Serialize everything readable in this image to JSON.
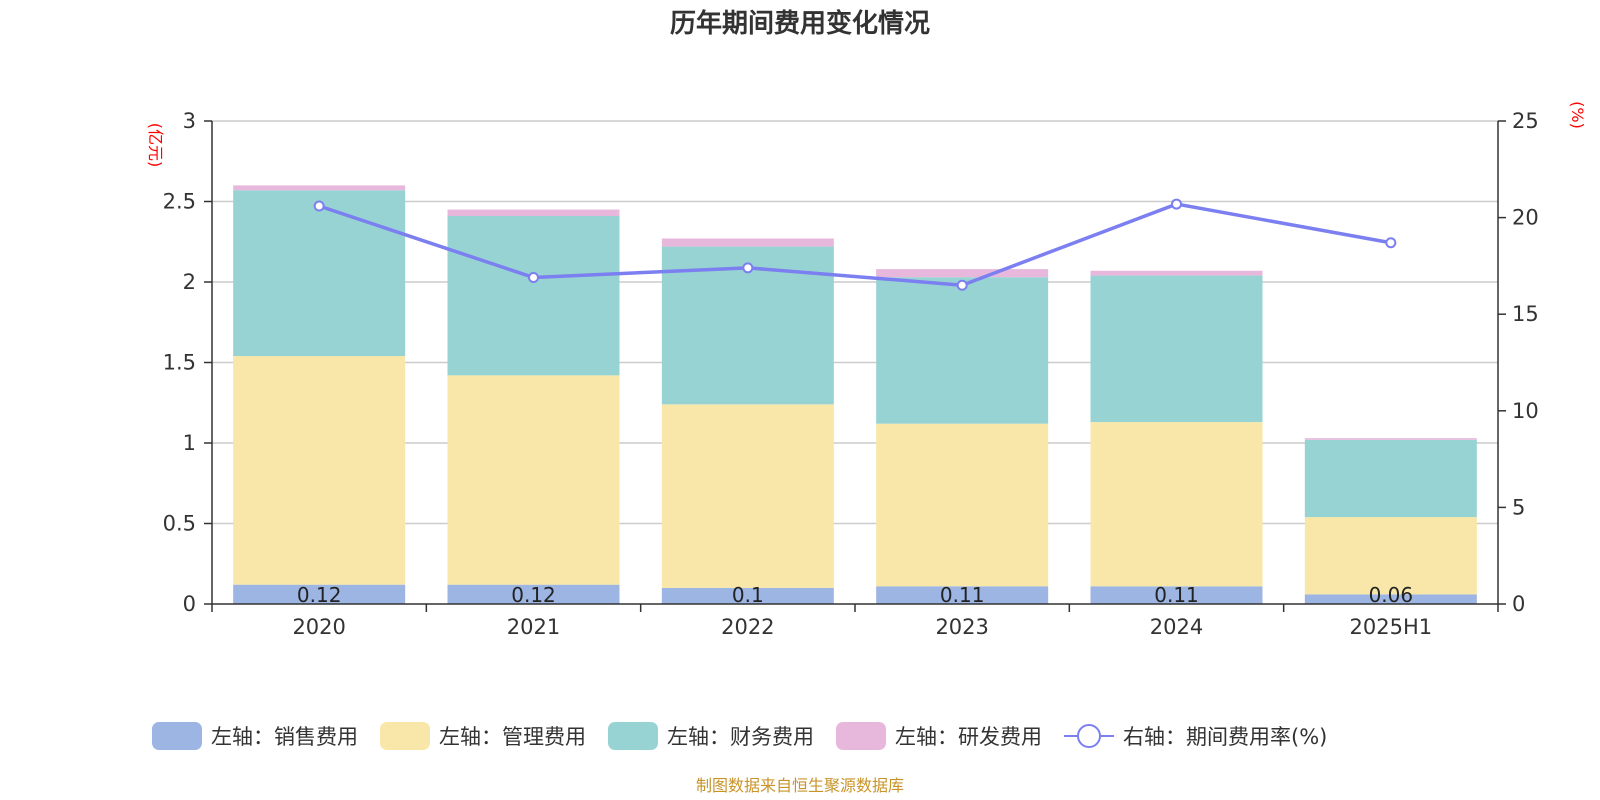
{
  "chart_data": {
    "type": "bar",
    "title": "历年期间费用变化情况",
    "categories": [
      "2020",
      "2021",
      "2022",
      "2023",
      "2024",
      "2025H1"
    ],
    "left_axis": {
      "unit": "(亿元)",
      "ylim": [
        0,
        3
      ],
      "ticks": [
        "0",
        "0.5",
        "1",
        "1.5",
        "2",
        "2.5",
        "3"
      ]
    },
    "right_axis": {
      "unit": "(%)",
      "ylim": [
        0,
        25
      ],
      "ticks": [
        "0",
        "5",
        "10",
        "15",
        "20",
        "25"
      ]
    },
    "grid": true,
    "legend_position": "bottom",
    "series": [
      {
        "name": "左轴：销售费用",
        "type": "bar",
        "stack": "left",
        "color": "#9db5e2",
        "values": [
          0.12,
          0.12,
          0.1,
          0.11,
          0.11,
          0.06
        ],
        "labels": [
          "0.12",
          "0.12",
          "0.1",
          "0.11",
          "0.11",
          "0.06"
        ]
      },
      {
        "name": "左轴：管理费用",
        "type": "bar",
        "stack": "left",
        "color": "#f8e7a8",
        "values": [
          1.42,
          1.3,
          1.14,
          1.01,
          1.02,
          0.48
        ]
      },
      {
        "name": "左轴：财务费用",
        "type": "bar",
        "stack": "left",
        "color": "#98d3d4",
        "values": [
          1.03,
          0.99,
          0.98,
          0.91,
          0.91,
          0.48
        ]
      },
      {
        "name": "左轴：研发费用",
        "type": "bar",
        "stack": "left",
        "color": "#e8b8dc",
        "values": [
          0.03,
          0.04,
          0.05,
          0.05,
          0.03,
          0.01
        ]
      },
      {
        "name": "右轴：期间费用率(%)",
        "type": "line",
        "axis": "right",
        "color": "#7b7ff0",
        "values": [
          20.6,
          16.9,
          17.4,
          16.5,
          20.7,
          18.7
        ]
      }
    ],
    "source": "制图数据来自恒生聚源数据库"
  }
}
